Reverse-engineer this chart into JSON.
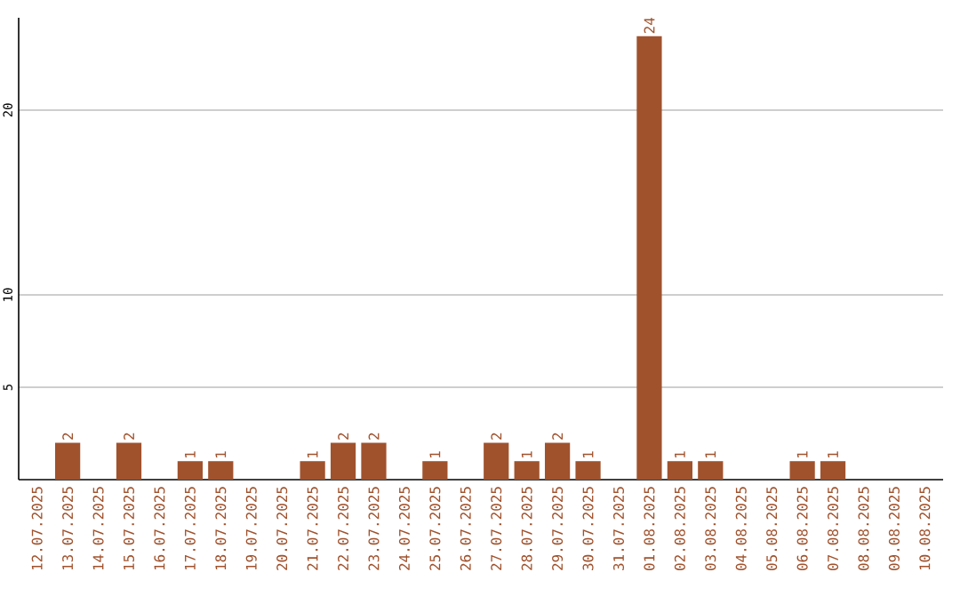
{
  "chart_data": {
    "type": "bar",
    "categories": [
      "12.07.2025",
      "13.07.2025",
      "14.07.2025",
      "15.07.2025",
      "16.07.2025",
      "17.07.2025",
      "18.07.2025",
      "19.07.2025",
      "20.07.2025",
      "21.07.2025",
      "22.07.2025",
      "23.07.2025",
      "24.07.2025",
      "25.07.2025",
      "26.07.2025",
      "27.07.2025",
      "28.07.2025",
      "29.07.2025",
      "30.07.2025",
      "31.07.2025",
      "01.08.2025",
      "02.08.2025",
      "03.08.2025",
      "04.08.2025",
      "05.08.2025",
      "06.08.2025",
      "07.08.2025",
      "08.08.2025",
      "09.08.2025",
      "10.08.2025"
    ],
    "values": [
      0,
      2,
      0,
      2,
      0,
      1,
      1,
      0,
      0,
      1,
      2,
      2,
      0,
      1,
      0,
      2,
      1,
      2,
      1,
      0,
      24,
      1,
      1,
      0,
      0,
      1,
      1,
      0,
      0,
      0
    ],
    "value_labels": [
      null,
      "2",
      null,
      "2",
      null,
      "1",
      "1",
      null,
      null,
      "1",
      "2",
      "2",
      null,
      "1",
      null,
      "2",
      "1",
      "2",
      "1",
      null,
      "24",
      "1",
      "1",
      null,
      null,
      "1",
      "1",
      null,
      null,
      null
    ],
    "color": "#a0522d",
    "ylim": [
      0,
      25
    ],
    "yticks": [
      5,
      10,
      20
    ],
    "grid": "y"
  }
}
